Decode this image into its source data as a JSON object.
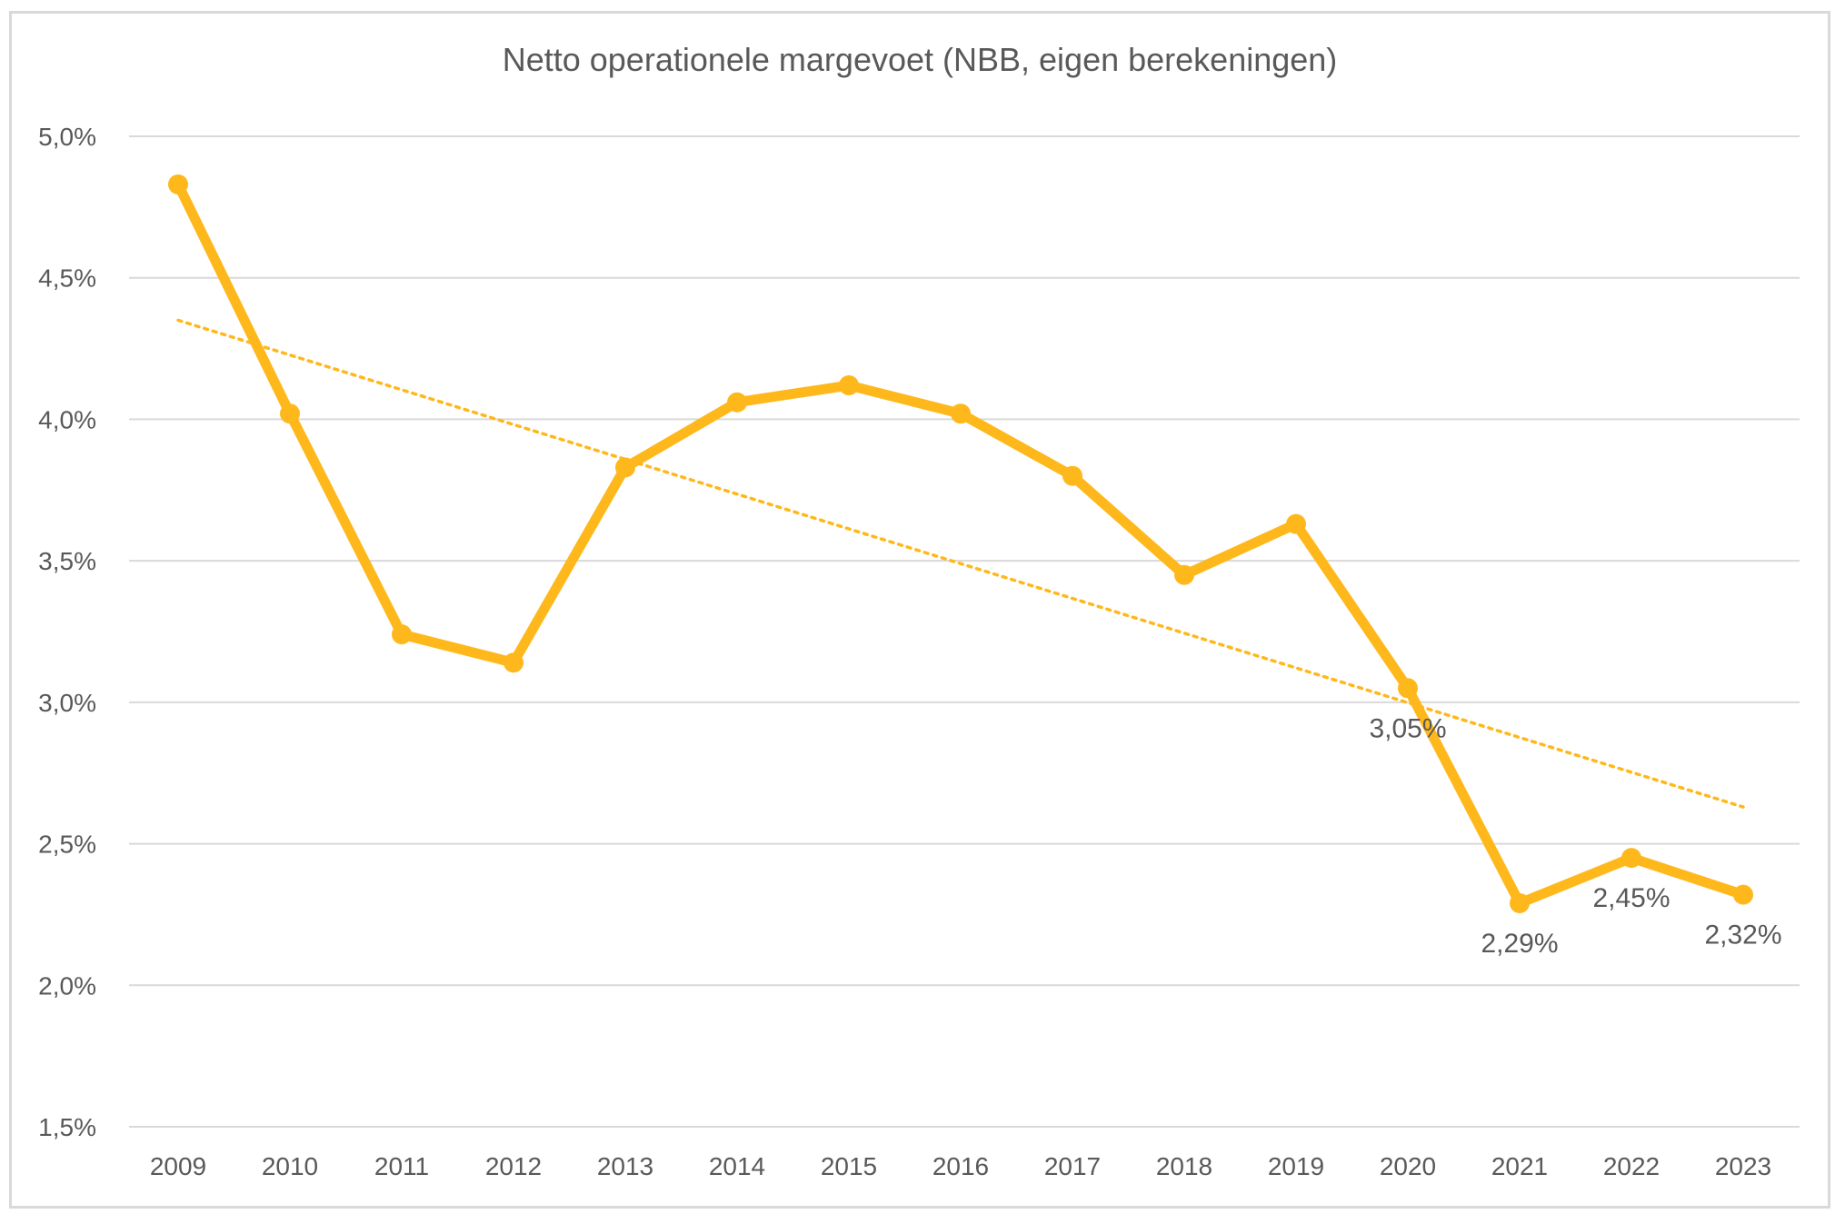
{
  "chart_data": {
    "type": "line",
    "title": "Netto operationele margevoet (NBB, eigen berekeningen)",
    "xlabel": "",
    "ylabel": "",
    "categories": [
      "2009",
      "2010",
      "2011",
      "2012",
      "2013",
      "2014",
      "2015",
      "2016",
      "2017",
      "2018",
      "2019",
      "2020",
      "2021",
      "2022",
      "2023"
    ],
    "series": [
      {
        "values": [
          4.83,
          4.02,
          3.24,
          3.14,
          3.83,
          4.06,
          4.12,
          4.02,
          3.8,
          3.45,
          3.63,
          3.05,
          2.29,
          2.45,
          2.32
        ],
        "color": "#FFB81C"
      }
    ],
    "trendline": {
      "style": "dotted",
      "color": "#FFB81C",
      "start": 4.35,
      "end": 2.63
    },
    "data_labels": [
      {
        "index": 11,
        "text": "3,05%"
      },
      {
        "index": 12,
        "text": "2,29%"
      },
      {
        "index": 13,
        "text": "2,45%"
      },
      {
        "index": 14,
        "text": "2,32%"
      }
    ],
    "y_ticks": [
      {
        "value": 5.0,
        "label": "5,0%"
      },
      {
        "value": 4.5,
        "label": "4,5%"
      },
      {
        "value": 4.0,
        "label": "4,0%"
      },
      {
        "value": 3.5,
        "label": "3,5%"
      },
      {
        "value": 3.0,
        "label": "3,0%"
      },
      {
        "value": 2.5,
        "label": "2,5%"
      },
      {
        "value": 2.0,
        "label": "2,0%"
      },
      {
        "value": 1.5,
        "label": "1,5%"
      }
    ],
    "ylim": [
      1.5,
      5.0
    ],
    "grid": true,
    "legend": "none"
  }
}
